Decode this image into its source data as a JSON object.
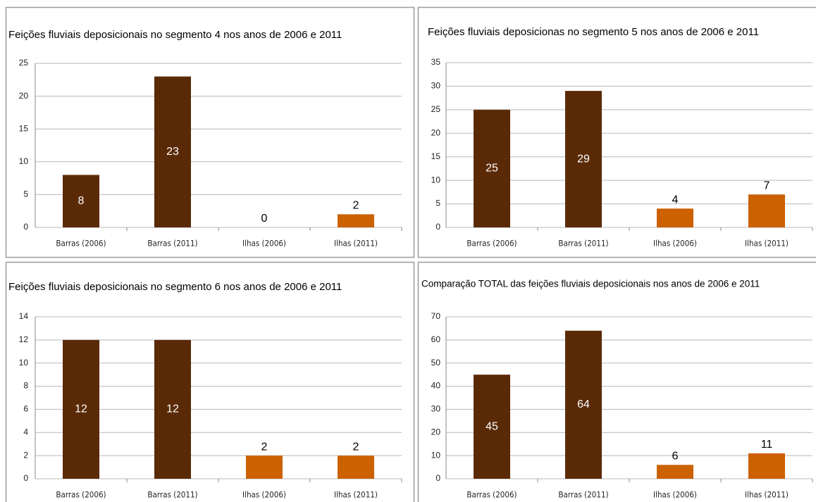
{
  "chart_data": [
    {
      "type": "bar",
      "title": "Feições fluviais deposicionais no segmento 4 nos anos de 2006 e 2011",
      "categories": [
        "Barras (2006)",
        "Barras (2011)",
        "Ilhas (2006)",
        "Ilhas (2011)"
      ],
      "values": [
        8,
        23,
        0,
        2
      ],
      "colors": [
        "#5a2a07",
        "#5a2a07",
        "#cc6100",
        "#cc6100"
      ],
      "label_colors": [
        "#ffffff",
        "#ffffff",
        "#000000",
        "#000000"
      ],
      "ylim": [
        0,
        25
      ],
      "yticks": [
        0,
        5,
        10,
        15,
        20,
        25
      ],
      "grid": true
    },
    {
      "type": "bar",
      "title": "Feições fluviais deposicionas no segmento 5 nos anos de 2006 e 2011",
      "categories": [
        "Barras (2006)",
        "Barras (2011)",
        "Ilhas (2006)",
        "Ilhas (2011)"
      ],
      "values": [
        25,
        29,
        4,
        7
      ],
      "colors": [
        "#5a2a07",
        "#5a2a07",
        "#cc6100",
        "#cc6100"
      ],
      "label_colors": [
        "#ffffff",
        "#ffffff",
        "#000000",
        "#000000"
      ],
      "ylim": [
        0,
        35
      ],
      "yticks": [
        0,
        5,
        10,
        15,
        20,
        25,
        30,
        35
      ],
      "grid": true
    },
    {
      "type": "bar",
      "title": "Feições fluviais deposicionais no segmento 6 nos anos de 2006 e 2011",
      "categories": [
        "Barras (2006)",
        "Barras (2011)",
        "Ilhas (2006)",
        "Ilhas (2011)"
      ],
      "values": [
        12,
        12,
        2,
        2
      ],
      "colors": [
        "#5a2a07",
        "#5a2a07",
        "#cc6100",
        "#cc6100"
      ],
      "label_colors": [
        "#ffffff",
        "#ffffff",
        "#000000",
        "#000000"
      ],
      "ylim": [
        0,
        14
      ],
      "yticks": [
        0,
        2,
        4,
        6,
        8,
        10,
        12,
        14
      ],
      "grid": true
    },
    {
      "type": "bar",
      "title": "Comparação TOTAL das feições fluviais deposicionais nos anos de 2006 e 2011",
      "categories": [
        "Barras (2006)",
        "Barras (2011)",
        "Ilhas (2006)",
        "Ilhas (2011)"
      ],
      "values": [
        45,
        64,
        6,
        11
      ],
      "colors": [
        "#5a2a07",
        "#5a2a07",
        "#cc6100",
        "#cc6100"
      ],
      "label_colors": [
        "#ffffff",
        "#ffffff",
        "#000000",
        "#000000"
      ],
      "ylim": [
        0,
        70
      ],
      "yticks": [
        0,
        10,
        20,
        30,
        40,
        50,
        60,
        70
      ],
      "grid": true
    }
  ]
}
